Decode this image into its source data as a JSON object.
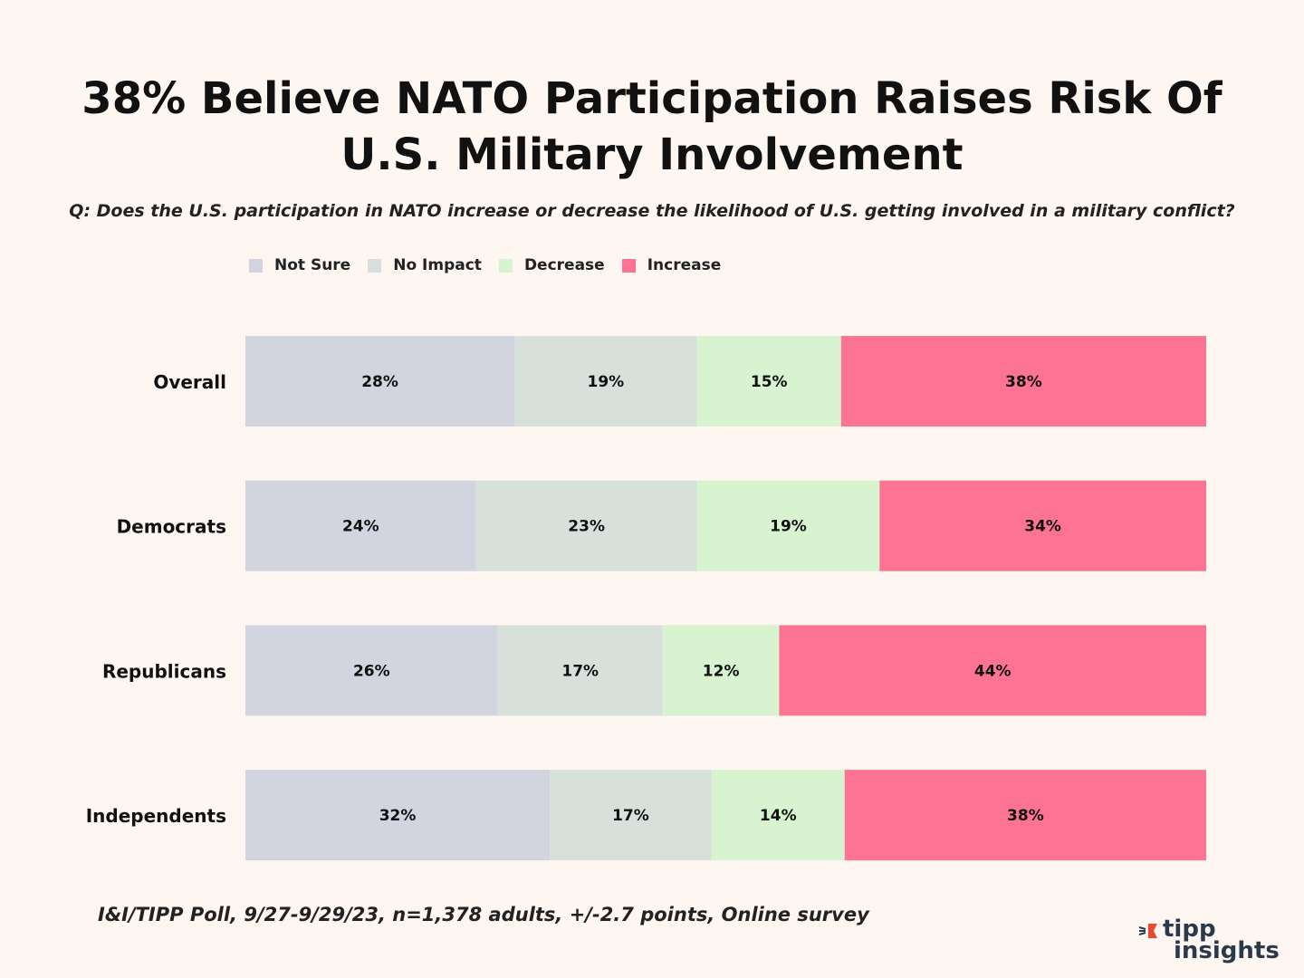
{
  "title": "38% Believe NATO Participation Raises Risk Of U.S. Military Involvement",
  "question": "Q: Does the U.S. participation in NATO increase or decrease the likelihood of U.S. getting involved in a military conflict?",
  "footnote": "I&I/TIPP Poll, 9/27-9/29/23, n=1,378 adults, +/-2.7 points, Online survey",
  "logo": {
    "line1": "tipp",
    "line2": "insights"
  },
  "colors": {
    "background": "#fdf6f1",
    "not_sure": "#d2d4df",
    "no_impact": "#d7e0db",
    "decrease": "#d7f3d0",
    "increase": "#fd7393",
    "logo_accent": "#e8492f"
  },
  "chart_data": {
    "type": "bar",
    "orientation": "horizontal",
    "stacked": true,
    "percent_of_total": true,
    "categories": [
      "Overall",
      "Democrats",
      "Republicans",
      "Independents"
    ],
    "series": [
      {
        "name": "Not Sure",
        "key": "not_sure",
        "values": [
          28,
          24,
          26,
          32
        ]
      },
      {
        "name": "No Impact",
        "key": "no_impact",
        "values": [
          19,
          23,
          17,
          17
        ]
      },
      {
        "name": "Decrease",
        "key": "decrease",
        "values": [
          15,
          19,
          12,
          14
        ]
      },
      {
        "name": "Increase",
        "key": "increase",
        "values": [
          38,
          34,
          44,
          38
        ]
      }
    ],
    "value_suffix": "%",
    "xlim": [
      0,
      100
    ],
    "grid": false,
    "legend": "top-left"
  }
}
